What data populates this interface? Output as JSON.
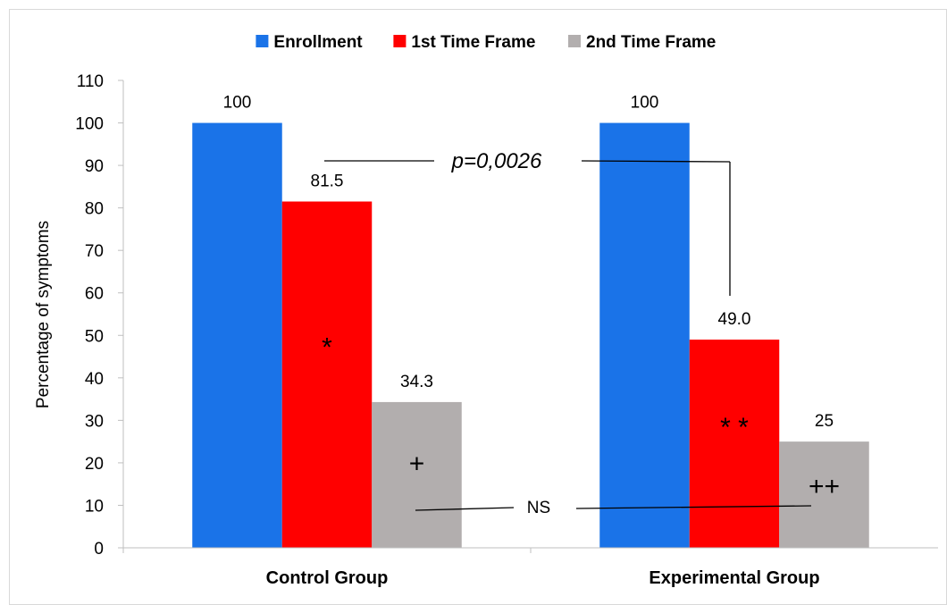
{
  "chart_data": {
    "type": "bar",
    "categories": [
      "Control Group",
      "Experimental Group"
    ],
    "series": [
      {
        "name": "Enrollment",
        "values": [
          100,
          100
        ],
        "labels": [
          "100",
          "100"
        ],
        "color": "#1a73e8"
      },
      {
        "name": "1st Time Frame",
        "values": [
          81.5,
          49.0
        ],
        "labels": [
          "81.5",
          "49.0"
        ],
        "color": "#ff0000"
      },
      {
        "name": "2nd Time Frame",
        "values": [
          34.3,
          25
        ],
        "labels": [
          "34.3",
          "25"
        ],
        "color": "#b2aeae"
      }
    ],
    "ylabel": "Percentage of symptoms",
    "ylim": [
      0,
      110
    ],
    "yticks": [
      0,
      10,
      20,
      30,
      40,
      50,
      60,
      70,
      80,
      90,
      100,
      110
    ],
    "legend_position": "top",
    "grid": false,
    "annotations": {
      "pvalue": "p=0,0026",
      "ns": "NS",
      "markers": [
        {
          "category": 0,
          "series": 1,
          "text": "*"
        },
        {
          "category": 0,
          "series": 2,
          "text": "+"
        },
        {
          "category": 1,
          "series": 1,
          "text": "* *"
        },
        {
          "category": 1,
          "series": 2,
          "text": "++"
        }
      ]
    }
  }
}
